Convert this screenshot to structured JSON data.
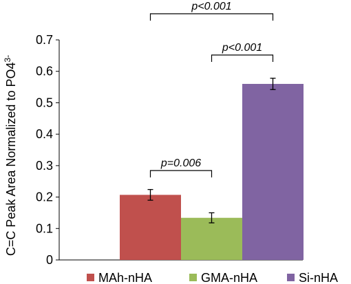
{
  "chart_data": {
    "type": "bar",
    "categories": [
      "MAh-nHA",
      "GMA-nHA",
      "Si-nHA"
    ],
    "values": [
      0.207,
      0.134,
      0.56
    ],
    "errors": [
      0.017,
      0.016,
      0.018
    ],
    "colors": [
      "#c0504d",
      "#9bbb59",
      "#8064a2"
    ],
    "ylabel": "C=C Peak Area Normalized to PO4",
    "ylabel_superscript": "3-",
    "ylim": [
      0,
      0.7
    ],
    "yticks": [
      "0",
      "0.1",
      "0.2",
      "0.3",
      "0.4",
      "0.5",
      "0.6",
      "0.7"
    ],
    "grid": false,
    "legend": {
      "placement": "bottom",
      "entries": [
        "MAh-nHA",
        "GMA-nHA",
        "Si-nHA"
      ]
    },
    "annotations": [
      {
        "text": "p=0.006",
        "from": "MAh-nHA",
        "to": "GMA-nHA"
      },
      {
        "text": "p<0.001",
        "from": "GMA-nHA",
        "to": "Si-nHA"
      },
      {
        "text": "p<0.001",
        "from": "MAh-nHA",
        "to": "Si-nHA"
      }
    ]
  }
}
